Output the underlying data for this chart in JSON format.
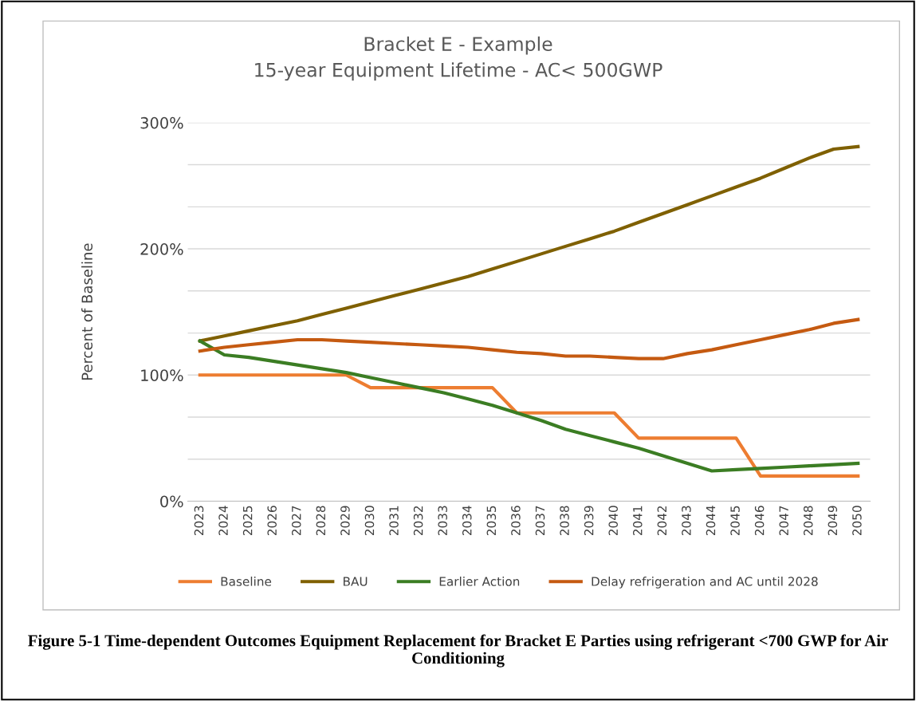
{
  "chart_data": {
    "type": "line",
    "title": "Bracket E - Example",
    "subtitle": "15-year Equipment Lifetime - AC< 500GWP",
    "ylabel": "Percent of Baseline",
    "categories": [
      "2023",
      "2024",
      "2025",
      "2026",
      "2027",
      "2028",
      "2029",
      "2030",
      "2031",
      "2032",
      "2033",
      "2034",
      "2035",
      "2036",
      "2037",
      "2038",
      "2039",
      "2040",
      "2041",
      "2042",
      "2043",
      "2044",
      "2045",
      "2046",
      "2047",
      "2048",
      "2049",
      "2050"
    ],
    "series": [
      {
        "name": "Baseline",
        "color": "#ed7d31",
        "values": [
          100,
          100,
          100,
          100,
          100,
          100,
          100,
          90,
          90,
          90,
          90,
          90,
          90,
          70,
          70,
          70,
          70,
          70,
          50,
          50,
          50,
          50,
          50,
          20,
          20,
          20,
          20,
          20
        ]
      },
      {
        "name": "BAU",
        "color": "#7f6000",
        "values": [
          127,
          131,
          135,
          139,
          143,
          148,
          153,
          158,
          163,
          168,
          173,
          178,
          184,
          190,
          196,
          202,
          208,
          214,
          221,
          228,
          235,
          242,
          249,
          256,
          264,
          272,
          279,
          281
        ]
      },
      {
        "name": "Earlier Action",
        "color": "#3b7d23",
        "values": [
          127,
          116,
          114,
          111,
          108,
          105,
          102,
          98,
          94,
          90,
          86,
          81,
          76,
          70,
          64,
          57,
          52,
          47,
          42,
          36,
          30,
          24,
          25,
          26,
          27,
          28,
          29,
          30
        ]
      },
      {
        "name": "Delay refrigeration and AC until 2028",
        "color": "#c55a11",
        "values": [
          119,
          122,
          124,
          126,
          128,
          128,
          127,
          126,
          125,
          124,
          123,
          122,
          120,
          118,
          117,
          115,
          115,
          114,
          113,
          113,
          117,
          120,
          124,
          128,
          132,
          136,
          141,
          144
        ]
      }
    ],
    "ylim": [
      0,
      300
    ],
    "yticks": [
      {
        "value": 0,
        "label": "0%"
      },
      {
        "value": 33.3,
        "label": null
      },
      {
        "value": 66.7,
        "label": null
      },
      {
        "value": 100,
        "label": "100%"
      },
      {
        "value": 133.3,
        "label": null
      },
      {
        "value": 166.7,
        "label": null
      },
      {
        "value": 200,
        "label": "200%"
      },
      {
        "value": 233.3,
        "label": null
      },
      {
        "value": 266.7,
        "label": null
      },
      {
        "value": 300,
        "label": "300%"
      }
    ],
    "grid": "y",
    "legend": "bottom",
    "marker": "none",
    "line_style": "solid",
    "annotations": [
      "Figure 5-1 Time-dependent Outcomes Equipment Replacement for Bracket E Parties using refrigerant <700 GWP for Air Conditioning"
    ]
  }
}
